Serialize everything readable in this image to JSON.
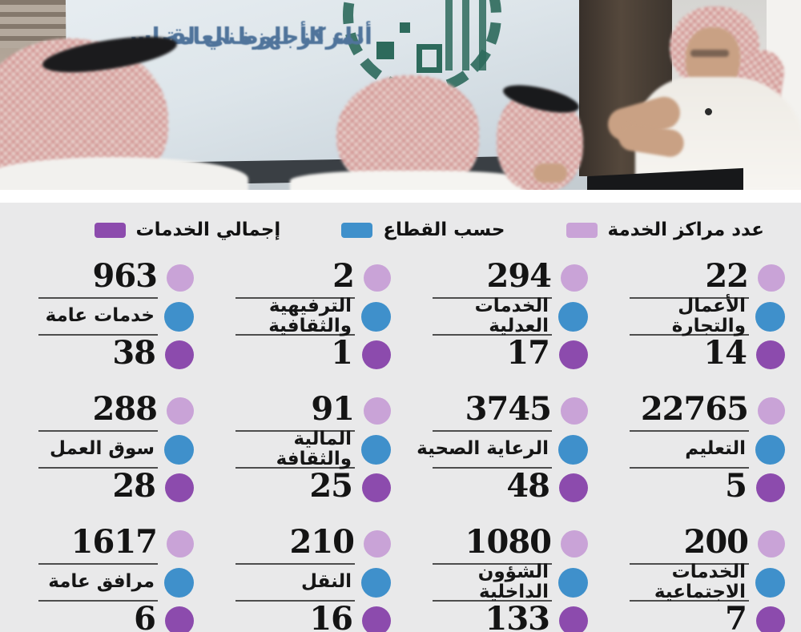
{
  "screen": {
    "title_line1": "المركز الوطني لقياس",
    "title_line2": "أداء الأجهزة العامة"
  },
  "colors": {
    "centers": "#c9a3d7",
    "sector": "#3f90cb",
    "services": "#8c4bad",
    "panel_bg": "#e9e9ea"
  },
  "legend": [
    {
      "label": "عدد مراكز الخدمة",
      "key": "centers"
    },
    {
      "label": "حسب القطاع",
      "key": "sector"
    },
    {
      "label": "إجمالي الخدمات",
      "key": "services"
    }
  ],
  "chart_data": {
    "type": "table",
    "title": "المركز الوطني لقياس أداء الأجهزة العامة",
    "legend": [
      "عدد مراكز الخدمة",
      "حسب القطاع",
      "إجمالي الخدمات"
    ],
    "columns": [
      "عدد مراكز الخدمة",
      "القطاع",
      "إجمالي الخدمات"
    ],
    "rows": [
      {
        "service_centers": 22,
        "sector": "الأعمال والتجارة",
        "total_services": 14
      },
      {
        "service_centers": 294,
        "sector": "الخدمات العدلية",
        "total_services": 17
      },
      {
        "service_centers": 2,
        "sector": "الترفيهية والثقافية",
        "total_services": 1
      },
      {
        "service_centers": 963,
        "sector": "خدمات عامة",
        "total_services": 38
      },
      {
        "service_centers": 22765,
        "sector": "التعليم",
        "total_services": 5
      },
      {
        "service_centers": 3745,
        "sector": "الرعاية الصحية",
        "total_services": 48
      },
      {
        "service_centers": 91,
        "sector": "المالية والثقافة",
        "total_services": 25
      },
      {
        "service_centers": 288,
        "sector": "سوق العمل",
        "total_services": 28
      },
      {
        "service_centers": 200,
        "sector": "الخدمات الاجتماعية",
        "total_services": 7
      },
      {
        "service_centers": 1080,
        "sector": "الشؤون الداخلية",
        "total_services": 133
      },
      {
        "service_centers": 210,
        "sector": "النقل",
        "total_services": 16
      },
      {
        "service_centers": 1617,
        "sector": "مرافق عامة",
        "total_services": 6
      }
    ]
  }
}
